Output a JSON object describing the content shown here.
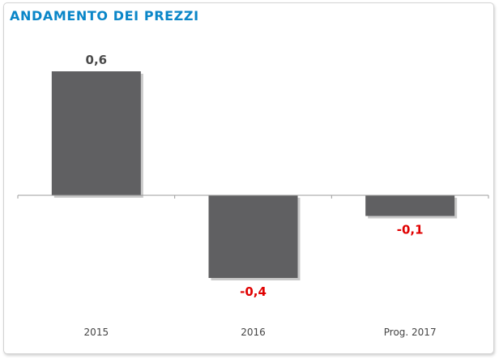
{
  "chart_data": {
    "type": "bar",
    "title": "ANDAMENTO DEI PREZZI",
    "xlabel": "",
    "ylabel": "",
    "categories": [
      "2015",
      "2016",
      "Prog. 2017"
    ],
    "values": [
      0.6,
      -0.4,
      -0.1
    ],
    "data_labels": [
      "0,6",
      "-0,4",
      "-0,1"
    ],
    "ylim": [
      -0.6,
      0.8
    ],
    "grid": false,
    "legend": "none"
  },
  "colors": {
    "title": "#0a86c8",
    "bar": "#606062",
    "bar_shadow": "#c9c9c9",
    "axis": "#9c9c9c",
    "positive_label": "#4a4a4a",
    "negative_label": "#e00000",
    "category_label": "#444444"
  }
}
